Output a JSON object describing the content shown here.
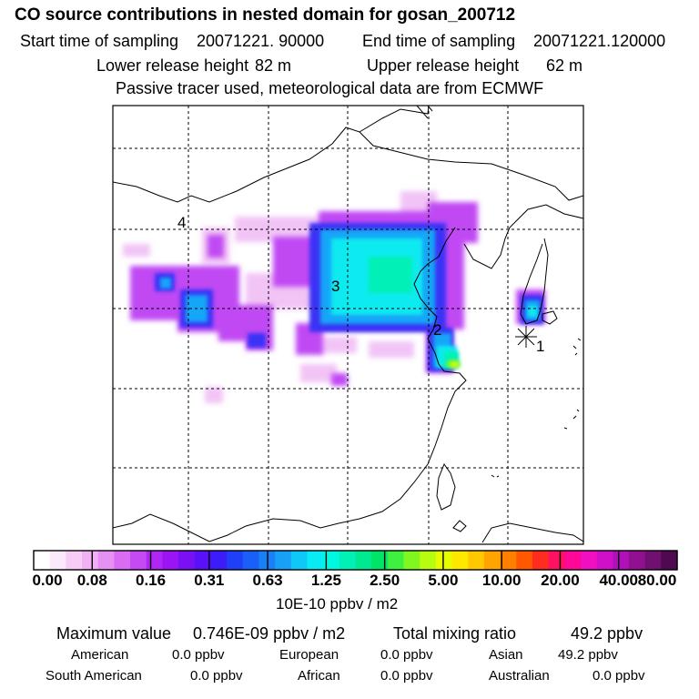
{
  "header": {
    "title": "CO  source contributions in nested domain for gosan_200712",
    "start_label": "Start time of sampling",
    "start_value": "20071221. 90000",
    "end_label": "End time of sampling",
    "end_value": "20071221.120000",
    "lower_label": "Lower release height",
    "lower_value": "82 m",
    "upper_label": "Upper release height",
    "upper_value": "62 m",
    "note": "Passive tracer used, meteorological data are from ECMWF"
  },
  "map": {
    "labels": [
      "1",
      "2",
      "3",
      "4"
    ],
    "receptor_icon": "asterisk-star-icon"
  },
  "colorbar": {
    "ticks": [
      "0.00",
      "0.08",
      "0.16",
      "0.31",
      "0.63",
      "1.25",
      "2.50",
      "5.00",
      "10.00",
      "20.00",
      "40.00",
      "80.00"
    ],
    "colors": [
      "#ffffff",
      "#fbe8fb",
      "#f6ccf6",
      "#f0b0f3",
      "#e590f2",
      "#d86cf2",
      "#c64af3",
      "#b026f4",
      "#9a14f4",
      "#7a10f6",
      "#5a10f8",
      "#3c1cf8",
      "#2040f8",
      "#1a60f8",
      "#1a80f8",
      "#18a0f8",
      "#10c8f8",
      "#08eaf4",
      "#00f8e0",
      "#00f0b8",
      "#00e890",
      "#00e468",
      "#40f040",
      "#80f820",
      "#b8fc10",
      "#e8fc00",
      "#ffe800",
      "#ffc800",
      "#ffa400",
      "#ff8000",
      "#ff5800",
      "#ff2c20",
      "#ff1060",
      "#ff0898",
      "#f010c0",
      "#d010c8",
      "#b010b8",
      "#901090",
      "#701070",
      "#500850"
    ],
    "unit": "10E-10 ppbv / m2"
  },
  "stats": {
    "max_label": "Maximum value",
    "max_value": "0.746E-09 ppbv / m2",
    "total_label": "Total mixing ratio",
    "total_value": "49.2 ppbv",
    "regions": [
      {
        "name": "American",
        "value": "0.0 ppbv"
      },
      {
        "name": "European",
        "value": "0.0 ppbv"
      },
      {
        "name": "Asian",
        "value": "49.2 ppbv"
      },
      {
        "name": "South American",
        "value": "0.0 ppbv"
      },
      {
        "name": "African",
        "value": "0.0 ppbv"
      },
      {
        "name": "Australian",
        "value": "0.0 ppbv"
      }
    ]
  }
}
